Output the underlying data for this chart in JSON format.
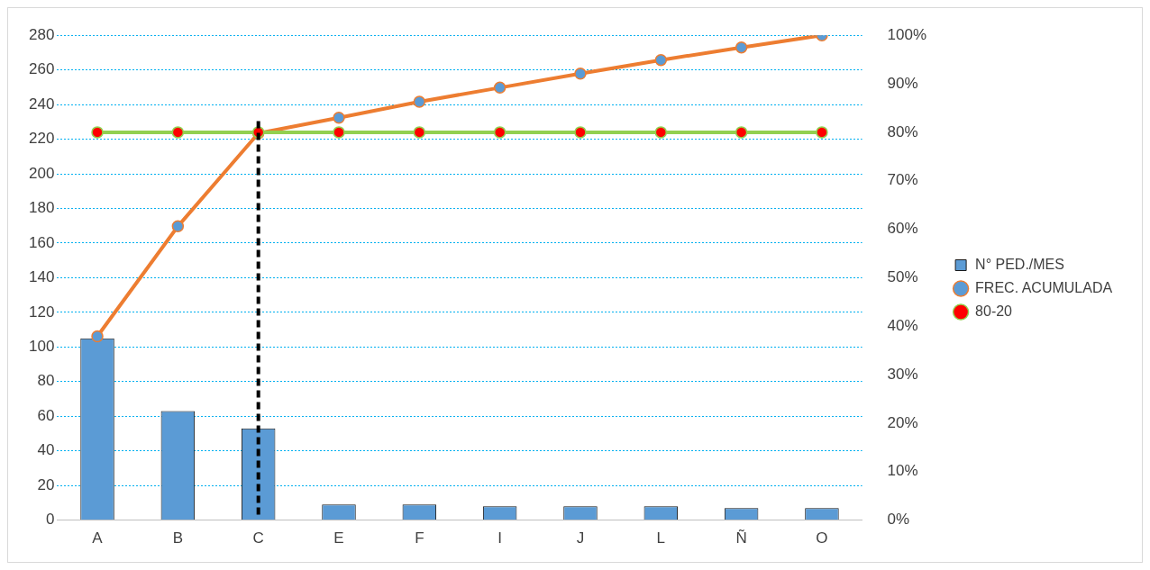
{
  "chart_data": {
    "type": "bar",
    "categories": [
      "A",
      "B",
      "C",
      "E",
      "F",
      "I",
      "J",
      "L",
      "Ñ",
      "O"
    ],
    "series": [
      {
        "name": "N° PED./MES",
        "color": "#5b9bd5",
        "values": [
          105,
          63,
          53,
          9,
          9,
          8,
          8,
          8,
          7,
          7
        ]
      },
      {
        "name": "FREC. ACUMULADA",
        "type": "line",
        "axis": "y2",
        "color": "#ed7d31",
        "values": [
          37.9,
          60.6,
          79.8,
          83.0,
          86.3,
          89.2,
          92.1,
          94.9,
          97.5,
          100
        ]
      },
      {
        "name": "80-20",
        "type": "line",
        "axis": "y2",
        "color": "#92d050",
        "values": [
          80,
          80,
          80,
          80,
          80,
          80,
          80,
          80,
          80,
          80
        ]
      }
    ],
    "ylim": [
      0,
      280
    ],
    "yticks": [
      0,
      20,
      40,
      60,
      80,
      100,
      120,
      140,
      160,
      180,
      200,
      220,
      240,
      260,
      280
    ],
    "y2lim": [
      0,
      100
    ],
    "y2ticks": [
      {
        "value": 0,
        "label": "0%"
      },
      {
        "value": 10,
        "label": "10%"
      },
      {
        "value": 20,
        "label": "20%"
      },
      {
        "value": 30,
        "label": "30%"
      },
      {
        "value": 40,
        "label": "40%"
      },
      {
        "value": 50,
        "label": "50%"
      },
      {
        "value": 60,
        "label": "60%"
      },
      {
        "value": 70,
        "label": "70%"
      },
      {
        "value": 80,
        "label": "80%"
      },
      {
        "value": 90,
        "label": "90%"
      },
      {
        "value": 100,
        "label": "100%"
      }
    ],
    "ref_lines": [
      {
        "axis": "x",
        "value": "C",
        "color": "#000000",
        "line_style": "dashed"
      }
    ],
    "grid": "y",
    "legend": "right",
    "marker": "circle",
    "line_style": "solid"
  }
}
